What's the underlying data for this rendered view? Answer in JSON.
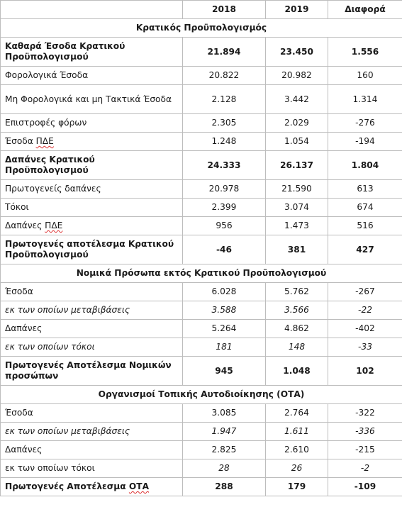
{
  "header": {
    "col_label": "",
    "col_2018": "2018",
    "col_2019": "2019",
    "col_diff": "Διαφορά"
  },
  "sections": [
    {
      "title": "Κρατικός Προϋπολογισμός",
      "rows": [
        {
          "label": "Καθαρά Έσοδα Κρατικού Προϋπολογισμού",
          "v2018": "21.894",
          "v2019": "23.450",
          "diff": "1.556",
          "style": "bold",
          "tall": true
        },
        {
          "label": "Φορολογικά Έσοδα",
          "v2018": "20.822",
          "v2019": "20.982",
          "diff": "160",
          "style": "normal",
          "tall": false
        },
        {
          "label": "Μη Φορολογικά και μη Τακτικά Έσοδα",
          "v2018": "2.128",
          "v2019": "3.442",
          "diff": "1.314",
          "style": "normal",
          "tall": true
        },
        {
          "label": "Επιστροφές φόρων",
          "v2018": "2.305",
          "v2019": "2.029",
          "diff": "-276",
          "style": "normal",
          "tall": false
        },
        {
          "label": "Έσοδα ΠΔΕ",
          "v2018": "1.248",
          "v2019": "1.054",
          "diff": "-194",
          "style": "normal",
          "tall": false
        },
        {
          "label": "Δαπάνες Κρατικού Προϋπολογισμού",
          "v2018": "24.333",
          "v2019": "26.137",
          "diff": "1.804",
          "style": "bold",
          "tall": true
        },
        {
          "label": "Πρωτογενείς δαπάνες",
          "v2018": "20.978",
          "v2019": "21.590",
          "diff": "613",
          "style": "normal",
          "tall": false
        },
        {
          "label": "Τόκοι",
          "v2018": "2.399",
          "v2019": "3.074",
          "diff": "674",
          "style": "normal",
          "tall": false
        },
        {
          "label": "Δαπάνες ΠΔΕ",
          "v2018": "956",
          "v2019": "1.473",
          "diff": "516",
          "style": "normal",
          "tall": false
        },
        {
          "label": "Πρωτογενές αποτέλεσμα Κρατικού Προϋπολογισμού",
          "v2018": "-46",
          "v2019": "381",
          "diff": "427",
          "style": "bold",
          "tall": true
        }
      ]
    },
    {
      "title": "Νομικά Πρόσωπα εκτός Κρατικού Προϋπολογισμού",
      "rows": [
        {
          "label": "Έσοδα",
          "v2018": "6.028",
          "v2019": "5.762",
          "diff": "-267",
          "style": "normal",
          "tall": false
        },
        {
          "label": "εκ των οποίων μεταβιβάσεις",
          "v2018": "3.588",
          "v2019": "3.566",
          "diff": "-22",
          "style": "italic",
          "tall": false
        },
        {
          "label": "Δαπάνες",
          "v2018": "5.264",
          "v2019": "4.862",
          "diff": "-402",
          "style": "normal",
          "tall": false
        },
        {
          "label": "εκ των οποίων τόκοι",
          "v2018": "181",
          "v2019": "148",
          "diff": "-33",
          "style": "italic",
          "tall": false
        },
        {
          "label": "Πρωτογενές Αποτέλεσμα Νομικών προσώπων",
          "v2018": "945",
          "v2019": "1.048",
          "diff": "102",
          "style": "bold",
          "tall": true
        }
      ]
    },
    {
      "title": "Οργανισμοί Τοπικής Αυτοδιοίκησης (ΟΤΑ)",
      "rows": [
        {
          "label": "Έσοδα",
          "v2018": "3.085",
          "v2019": "2.764",
          "diff": "-322",
          "style": "normal",
          "tall": false
        },
        {
          "label": "εκ των οποίων μεταβιβάσεις",
          "v2018": "1.947",
          "v2019": "1.611",
          "diff": "-336",
          "style": "italic",
          "tall": false
        },
        {
          "label": "Δαπάνες",
          "v2018": "2.825",
          "v2019": "2.610",
          "diff": "-215",
          "style": "normal",
          "tall": false
        },
        {
          "label": "εκ των οποίων τόκοι",
          "v2018": "28",
          "v2019": "26",
          "diff": "-2",
          "style": "italic-values",
          "tall": false
        },
        {
          "label": "Πρωτογενές Αποτέλεσμα ΟΤΑ",
          "v2018": "288",
          "v2019": "179",
          "diff": "-109",
          "style": "bold",
          "tall": false
        }
      ]
    }
  ]
}
